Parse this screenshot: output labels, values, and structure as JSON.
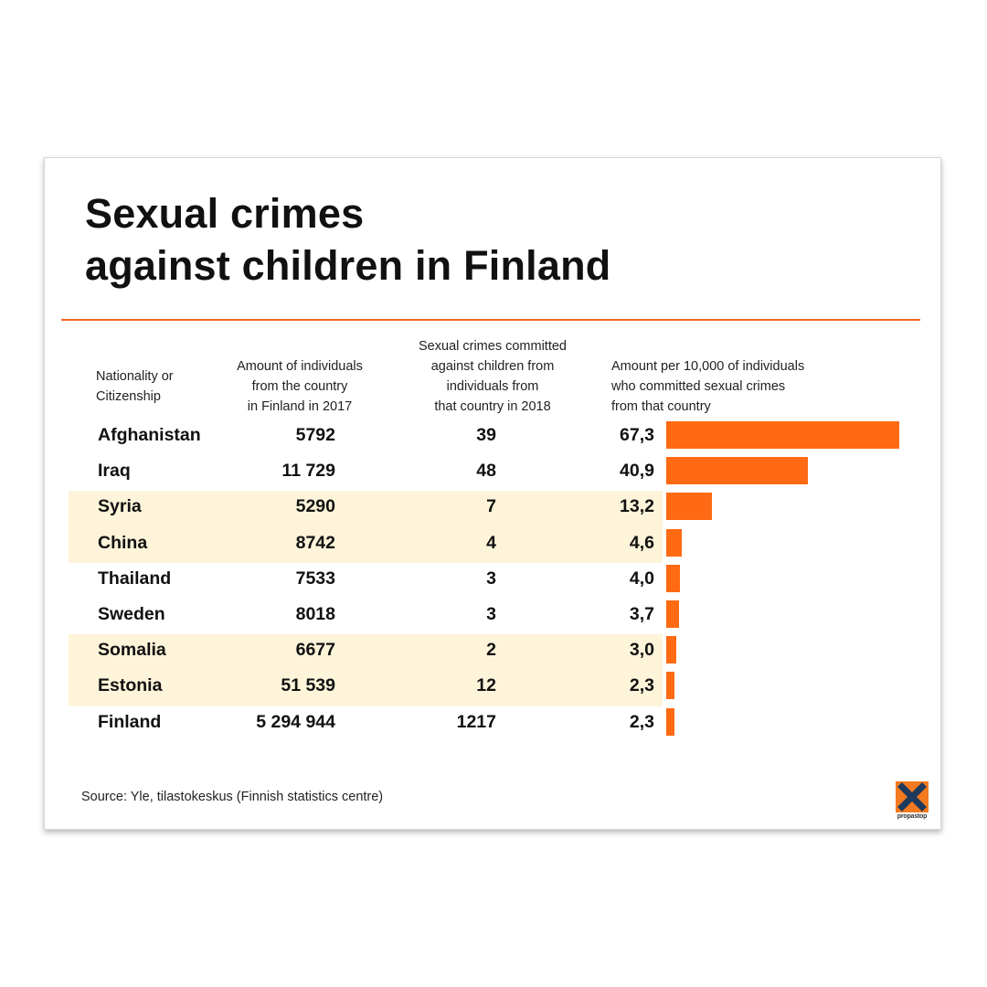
{
  "header": {
    "title_line1": "Sexual crimes",
    "title_line2": "against children in Finland"
  },
  "columns": {
    "nationality": [
      "Nationality or",
      "Citizenship"
    ],
    "population": [
      "Amount of individuals",
      "from the country",
      "in Finland in 2017"
    ],
    "crimes": [
      "Sexual crimes committed",
      "against children from",
      "individuals from",
      "that country in 2018"
    ],
    "rate": [
      "Amount per 10,000 of individuals",
      "who committed sexual crimes",
      "from that country"
    ]
  },
  "footer": {
    "source": "Source: Yle, tilastokeskus (Finnish statistics centre)",
    "logo_text": "propastop"
  },
  "colors": {
    "accent": "#ff6a13",
    "band": "#fdf4d9",
    "rule": "#f26722",
    "logo_bg": "#f47a20",
    "logo_x": "#1f3a5c"
  },
  "chart_data": {
    "type": "table",
    "title": "Sexual crimes against children in Finland",
    "rows": [
      {
        "country": "Afghanistan",
        "population": "5792",
        "crimes": "39",
        "rate": "67,3",
        "rate_value": 67.3
      },
      {
        "country": "Iraq",
        "population": "11 729",
        "crimes": "48",
        "rate": "40,9",
        "rate_value": 40.9
      },
      {
        "country": "Syria",
        "population": "5290",
        "crimes": "7",
        "rate": "13,2",
        "rate_value": 13.2
      },
      {
        "country": "China",
        "population": "8742",
        "crimes": "4",
        "rate": "4,6",
        "rate_value": 4.6
      },
      {
        "country": "Thailand",
        "population": "7533",
        "crimes": "3",
        "rate": "4,0",
        "rate_value": 4.0
      },
      {
        "country": "Sweden",
        "population": "8018",
        "crimes": "3",
        "rate": "3,7",
        "rate_value": 3.7
      },
      {
        "country": "Somalia",
        "population": "6677",
        "crimes": "2",
        "rate": "3,0",
        "rate_value": 3.0
      },
      {
        "country": "Estonia",
        "population": "51 539",
        "crimes": "12",
        "rate": "2,3",
        "rate_value": 2.3
      },
      {
        "country": "Finland",
        "population": "5 294 944",
        "crimes": "1217",
        "rate": "2,3",
        "rate_value": 2.3
      }
    ],
    "highlighted_groups": [
      [
        2,
        3
      ],
      [
        6,
        7
      ]
    ]
  }
}
